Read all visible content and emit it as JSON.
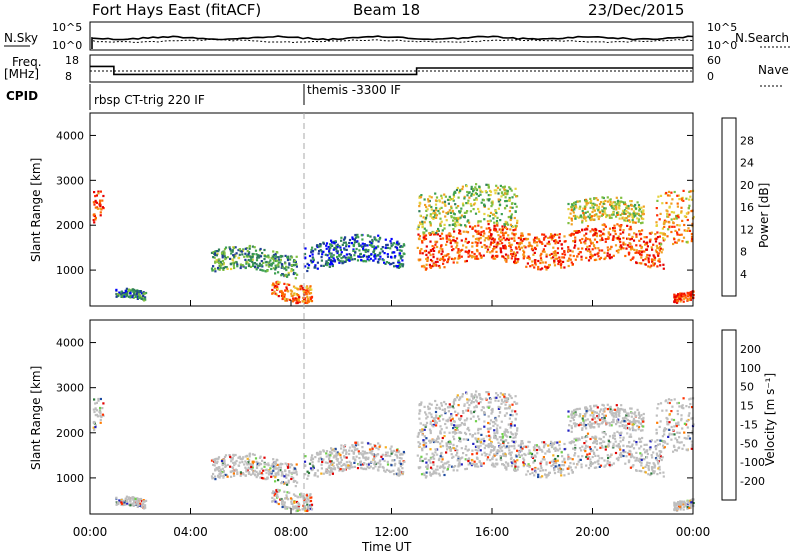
{
  "header": {
    "station": "Fort Hays East (fitACF)",
    "beam": "Beam 18",
    "date": "23/Dec/2015"
  },
  "strip": {
    "nsky_label": "N.Sky",
    "nsky_ticks": [
      "10^5",
      "10^0"
    ],
    "nsearch_label": "N.Search",
    "nsearch_ticks": [
      "10^5",
      "10^0"
    ],
    "freq_label": "Freq.",
    "freq_unit": "[MHz]",
    "freq_ticks": [
      "18",
      "8"
    ],
    "nave_label": "Nave",
    "nave_ticks": [
      "60",
      "0"
    ],
    "cpid_label": "CPID",
    "cpid_segments": [
      "rbsp CT-trig 220 IF",
      "themis -3300 IF"
    ],
    "freq_steps": [
      {
        "t": 0.0,
        "mhz": 16.5
      },
      {
        "t": 0.95,
        "mhz": 11.5
      },
      {
        "t": 13.0,
        "mhz": 15.5
      },
      {
        "t": 24.0,
        "mhz": 15.5
      }
    ]
  },
  "panels": {
    "power": {
      "ylabel": "Slant Range [km]",
      "yticks": [
        "4000",
        "3000",
        "2000",
        "1000"
      ],
      "colorbar_label": "Power [dB]",
      "colorbar_ticks": [
        "28",
        "24",
        "20",
        "16",
        "12",
        "8",
        "4"
      ]
    },
    "velocity": {
      "ylabel": "Slant Range [km]",
      "yticks": [
        "4000",
        "3000",
        "2000",
        "1000"
      ],
      "colorbar_label": "Velocity [m s⁻¹]",
      "colorbar_ticks": [
        "200",
        "100",
        "50",
        "15",
        "-15",
        "-50",
        "-100",
        "-200"
      ]
    }
  },
  "xaxis": {
    "ticks": [
      "00:00",
      "04:00",
      "08:00",
      "12:00",
      "16:00",
      "20:00",
      "00:00"
    ],
    "label": "Time UT"
  },
  "colors": {
    "power_scale": [
      "#0000ff",
      "#1e3c96",
      "#2e7d5a",
      "#3ca050",
      "#7fbf3f",
      "#e6d23c",
      "#f0a020",
      "#ff6a00",
      "#ff2a00",
      "#e60000"
    ],
    "velocity_scale": [
      "#2020c0",
      "#1e4aa0",
      "#2d7a3c",
      "#6fd04a",
      "#c8c8c8",
      "#f5b020",
      "#ff7a00",
      "#ff3000",
      "#e00000"
    ],
    "ground_scatter": "#bebebe"
  },
  "chart_data": {
    "type": "heatmap",
    "title": "Fort Hays East (fitACF) Beam 18 23/Dec/2015",
    "xlabel": "Time UT",
    "ylabel": "Slant Range [km]",
    "xlim": [
      0,
      24
    ],
    "ylim": [
      200,
      4500
    ],
    "scatter_regions": [
      {
        "t0": 0.1,
        "t1": 0.5,
        "r_center": 2400,
        "r_width": 700,
        "power_db": 26
      },
      {
        "t0": 1.0,
        "t1": 2.2,
        "r_center": 400,
        "r_width": 200,
        "power_db": 8
      },
      {
        "t0": 4.8,
        "t1": 8.2,
        "r_center": 1200,
        "r_width": 500,
        "power_db": 10
      },
      {
        "t0": 7.2,
        "t1": 8.8,
        "r_center": 600,
        "r_width": 400,
        "power_db": 22
      },
      {
        "t0": 8.5,
        "t1": 12.5,
        "r_center": 1400,
        "r_width": 600,
        "power_db": 6
      },
      {
        "t0": 13.0,
        "t1": 22.8,
        "r_center": 1550,
        "r_width": 800,
        "power_db": 24
      },
      {
        "t0": 13.0,
        "t1": 17.0,
        "r_center": 2400,
        "r_width": 900,
        "power_db": 14
      },
      {
        "t0": 19.0,
        "t1": 22.0,
        "r_center": 2300,
        "r_width": 500,
        "power_db": 16
      },
      {
        "t0": 22.5,
        "t1": 24.0,
        "r_center": 2300,
        "r_width": 1200,
        "power_db": 20
      },
      {
        "t0": 23.2,
        "t1": 24.0,
        "r_center": 500,
        "r_width": 200,
        "power_db": 26
      }
    ],
    "power_range_db": [
      0,
      30
    ],
    "velocity_range_ms": [
      -200,
      200
    ]
  }
}
